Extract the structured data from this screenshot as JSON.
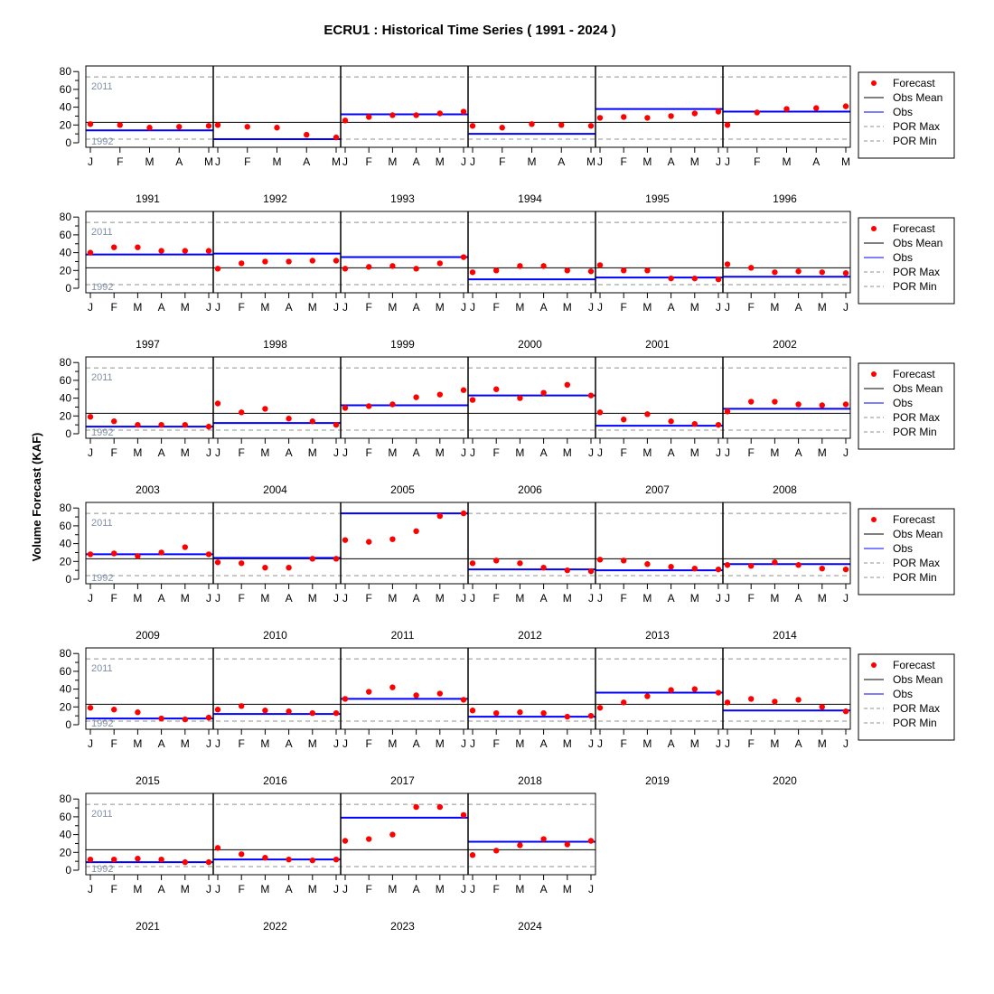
{
  "chart_data": {
    "type": "scatter",
    "title": "ECRU1 : Historical Time Series ( 1991 - 2024 )",
    "ylabel": "Volume Forecast (KAF)",
    "ylim": [
      0,
      80
    ],
    "yticks": [
      0,
      20,
      40,
      60,
      80
    ],
    "x_tick_labels": [
      "J",
      "F",
      "M",
      "A",
      "M",
      "J"
    ],
    "obs_mean": 23,
    "por_max": {
      "label": "2011",
      "value": 74
    },
    "por_min": {
      "label": "1992",
      "value": 4
    },
    "legend": [
      "Forecast",
      "Obs Mean",
      "Obs",
      "POR Max",
      "POR Min"
    ],
    "colors": {
      "forecast": "#ff0000",
      "obs": "#0000ff",
      "obs_mean": "#000000",
      "por": "#909090",
      "por_label": "#8090a8"
    },
    "years": [
      {
        "year": "1991",
        "forecasts": [
          21,
          20,
          17,
          18,
          19
        ],
        "obs": 14
      },
      {
        "year": "1992",
        "forecasts": [
          20,
          18,
          17,
          9,
          6
        ],
        "obs": 4
      },
      {
        "year": "1993",
        "forecasts": [
          25,
          29,
          31,
          31,
          33,
          35
        ],
        "obs": 32
      },
      {
        "year": "1994",
        "forecasts": [
          19,
          17,
          21,
          20,
          19
        ],
        "obs": 10
      },
      {
        "year": "1995",
        "forecasts": [
          28,
          29,
          28,
          30,
          33,
          35
        ],
        "obs": 38
      },
      {
        "year": "1996",
        "forecasts": [
          20,
          34,
          38,
          39,
          41
        ],
        "obs": 35
      },
      {
        "year": "1997",
        "forecasts": [
          40,
          46,
          46,
          42,
          42,
          42
        ],
        "obs": 38
      },
      {
        "year": "1998",
        "forecasts": [
          22,
          28,
          30,
          30,
          31,
          31
        ],
        "obs": 39
      },
      {
        "year": "1999",
        "forecasts": [
          22,
          24,
          25,
          22,
          28,
          35
        ],
        "obs": 35
      },
      {
        "year": "2000",
        "forecasts": [
          18,
          20,
          25,
          25,
          20,
          19
        ],
        "obs": 10
      },
      {
        "year": "2001",
        "forecasts": [
          26,
          20,
          20,
          11,
          11,
          10
        ],
        "obs": 12
      },
      {
        "year": "2002",
        "forecasts": [
          27,
          23,
          18,
          19,
          18,
          17
        ],
        "obs": 13
      },
      {
        "year": "2003",
        "forecasts": [
          19,
          14,
          10,
          10,
          10,
          8
        ],
        "obs": 8
      },
      {
        "year": "2004",
        "forecasts": [
          34,
          24,
          28,
          17,
          14,
          10
        ],
        "obs": 12
      },
      {
        "year": "2005",
        "forecasts": [
          29,
          31,
          33,
          41,
          44,
          49
        ],
        "obs": 32
      },
      {
        "year": "2006",
        "forecasts": [
          38,
          50,
          40,
          46,
          55,
          43
        ],
        "obs": 43
      },
      {
        "year": "2007",
        "forecasts": [
          24,
          16,
          22,
          14,
          11,
          10
        ],
        "obs": 9
      },
      {
        "year": "2008",
        "forecasts": [
          25,
          36,
          36,
          33,
          32,
          33
        ],
        "obs": 28
      },
      {
        "year": "2009",
        "forecasts": [
          28,
          29,
          26,
          30,
          36,
          28
        ],
        "obs": 28
      },
      {
        "year": "2010",
        "forecasts": [
          19,
          18,
          13,
          13,
          23,
          23
        ],
        "obs": 24
      },
      {
        "year": "2011",
        "forecasts": [
          44,
          42,
          45,
          54,
          71,
          74
        ],
        "obs": 74
      },
      {
        "year": "2012",
        "forecasts": [
          18,
          21,
          18,
          13,
          10,
          9
        ],
        "obs": 11
      },
      {
        "year": "2013",
        "forecasts": [
          22,
          21,
          17,
          14,
          12,
          11
        ],
        "obs": 10
      },
      {
        "year": "2014",
        "forecasts": [
          16,
          15,
          19,
          16,
          12,
          11
        ],
        "obs": 17
      },
      {
        "year": "2015",
        "forecasts": [
          19,
          17,
          14,
          7,
          6,
          8
        ],
        "obs": 7
      },
      {
        "year": "2016",
        "forecasts": [
          17,
          21,
          16,
          15,
          13,
          13
        ],
        "obs": 12
      },
      {
        "year": "2017",
        "forecasts": [
          29,
          37,
          42,
          33,
          35,
          28
        ],
        "obs": 29
      },
      {
        "year": "2018",
        "forecasts": [
          16,
          13,
          14,
          13,
          9,
          10
        ],
        "obs": 9
      },
      {
        "year": "2019",
        "forecasts": [
          19,
          25,
          32,
          39,
          40,
          36
        ],
        "obs": 36
      },
      {
        "year": "2020",
        "forecasts": [
          25,
          29,
          26,
          28,
          20,
          15
        ],
        "obs": 16
      },
      {
        "year": "2021",
        "forecasts": [
          12,
          12,
          13,
          12,
          9,
          9
        ],
        "obs": 9
      },
      {
        "year": "2022",
        "forecasts": [
          25,
          18,
          14,
          12,
          11,
          12
        ],
        "obs": 12
      },
      {
        "year": "2023",
        "forecasts": [
          33,
          35,
          40,
          71,
          71,
          62
        ],
        "obs": 59
      },
      {
        "year": "2024",
        "forecasts": [
          17,
          22,
          28,
          35,
          29,
          33
        ],
        "obs": 32
      }
    ]
  }
}
